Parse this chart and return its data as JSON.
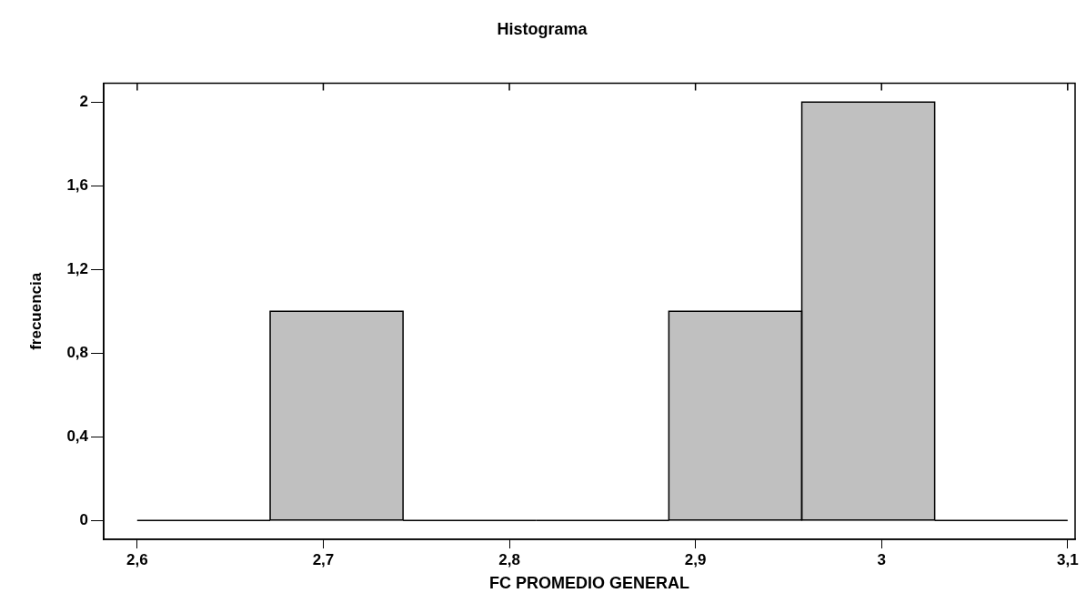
{
  "chart_data": {
    "type": "histogram",
    "title": "Histograma",
    "xlabel": "FC PROMEDIO GENERAL",
    "ylabel": "frecuencia",
    "bins": [
      2.6,
      2.6714,
      2.7429,
      2.8143,
      2.8857,
      2.9571,
      3.0286,
      3.1
    ],
    "values": [
      0,
      1,
      0,
      0,
      1,
      2,
      0
    ],
    "color": "#c0c0c0",
    "xlim": [
      2.582,
      3.104
    ],
    "xticks": [
      {
        "value": 2.6,
        "label": "2,6"
      },
      {
        "value": 2.7,
        "label": "2,7"
      },
      {
        "value": 2.8,
        "label": "2,8"
      },
      {
        "value": 2.9,
        "label": "2,9"
      },
      3,
      {
        "value": 3.1,
        "label": "3,1"
      }
    ],
    "ylim": [
      -0.09,
      2.09
    ],
    "yticks": [
      0,
      {
        "value": 0.4,
        "label": "0,4"
      },
      {
        "value": 0.8,
        "label": "0,8"
      },
      {
        "value": 1.2,
        "label": "1,2"
      },
      {
        "value": 1.6,
        "label": "1,6"
      },
      2
    ],
    "grid": false,
    "legend": false
  }
}
